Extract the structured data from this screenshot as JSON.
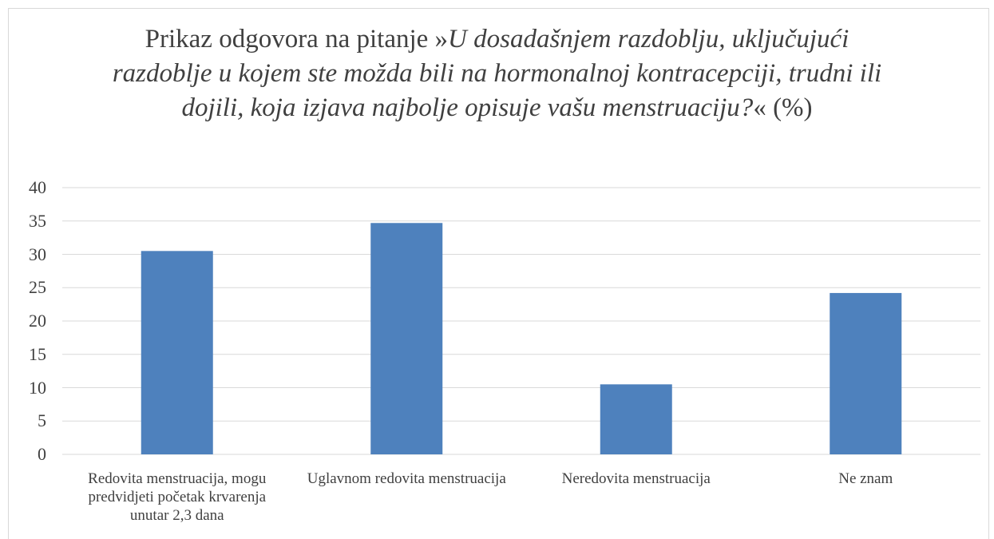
{
  "chart_data": {
    "type": "bar",
    "title": [
      {
        "text": "Prikaz odgovora na pitanje »",
        "italic": false
      },
      {
        "text": "U dosadašnjem razdoblju, uključujući razdoblje u kojem ste možda bili na hormonalnoj kontracepciji, trudni ili dojili, koja izjava najbolje opisuje vašu menstruaciju?",
        "italic": true
      },
      {
        "text": "« (%)",
        "italic": false
      }
    ],
    "categories": [
      "Redovita menstruacija, mogu predvidjeti početak krvarenja unutar 2,3 dana",
      "Uglavnom redovita menstruacija",
      "Neredovita menstruacija",
      "Ne znam"
    ],
    "values": [
      30.5,
      34.7,
      10.5,
      24.2
    ],
    "color": "#4e81bd",
    "ylim": [
      0,
      40
    ],
    "yticks": [
      0,
      5,
      10,
      15,
      20,
      25,
      30,
      35,
      40
    ],
    "grid": true
  }
}
